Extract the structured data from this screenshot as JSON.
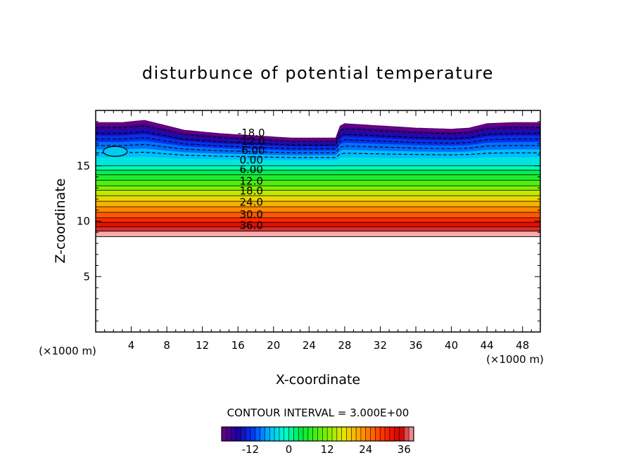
{
  "chart_data": {
    "type": "contour",
    "title": "disturbunce of potential temperature",
    "xlabel": "X-coordinate",
    "ylabel": "Z-coordinate",
    "x_unit": "(×1000 m)",
    "y_unit": "(×1000 m)",
    "xlim": [
      0,
      50
    ],
    "ylim": [
      0,
      20
    ],
    "x_ticks": [
      4,
      8,
      12,
      16,
      20,
      24,
      28,
      32,
      36,
      40,
      44,
      48
    ],
    "y_ticks": [
      5,
      10,
      15
    ],
    "contour_interval_label": "CONTOUR INTERVAL = 3.000E+00",
    "contour_interval": 3,
    "contour_labels": [
      "-18.0",
      "-12.0",
      "-6.00",
      "0.00",
      "6.00",
      "12.0",
      "18.0",
      "24.0",
      "30.0",
      "36.0"
    ],
    "contour_label_levels": [
      -18,
      -12,
      -6,
      0,
      6,
      12,
      18,
      24,
      30,
      36
    ],
    "colorbar_ticks": [
      -12,
      0,
      12,
      24,
      36
    ],
    "colorbar_range": [
      -21,
      39
    ],
    "bands": [
      {
        "z": 8.6,
        "value": 39
      },
      {
        "z": 9.1,
        "value": 36
      },
      {
        "z": 9.5,
        "value": 33
      },
      {
        "z": 9.9,
        "value": 30
      },
      {
        "z": 10.3,
        "value": 27
      },
      {
        "z": 10.8,
        "value": 24
      },
      {
        "z": 11.3,
        "value": 21
      },
      {
        "z": 11.8,
        "value": 18
      },
      {
        "z": 12.3,
        "value": 15
      },
      {
        "z": 12.8,
        "value": 12
      },
      {
        "z": 13.2,
        "value": 9
      },
      {
        "z": 13.7,
        "value": 6
      },
      {
        "z": 14.2,
        "value": 3
      },
      {
        "z": 14.6,
        "value": 0
      },
      {
        "z": 15.0,
        "value": -3
      }
    ],
    "top_boundary": [
      {
        "x": 0,
        "z": 18.9
      },
      {
        "x": 3,
        "z": 18.9
      },
      {
        "x": 5.5,
        "z": 19.1
      },
      {
        "x": 7,
        "z": 18.8
      },
      {
        "x": 10,
        "z": 18.2
      },
      {
        "x": 14,
        "z": 17.9
      },
      {
        "x": 18,
        "z": 17.7
      },
      {
        "x": 22,
        "z": 17.5
      },
      {
        "x": 27,
        "z": 17.5
      },
      {
        "x": 27.3,
        "z": 18.5
      },
      {
        "x": 28,
        "z": 18.8
      },
      {
        "x": 32,
        "z": 18.6
      },
      {
        "x": 36,
        "z": 18.4
      },
      {
        "x": 40,
        "z": 18.3
      },
      {
        "x": 42,
        "z": 18.4
      },
      {
        "x": 44,
        "z": 18.8
      },
      {
        "x": 47,
        "z": 18.9
      },
      {
        "x": 50,
        "z": 18.9
      }
    ]
  }
}
